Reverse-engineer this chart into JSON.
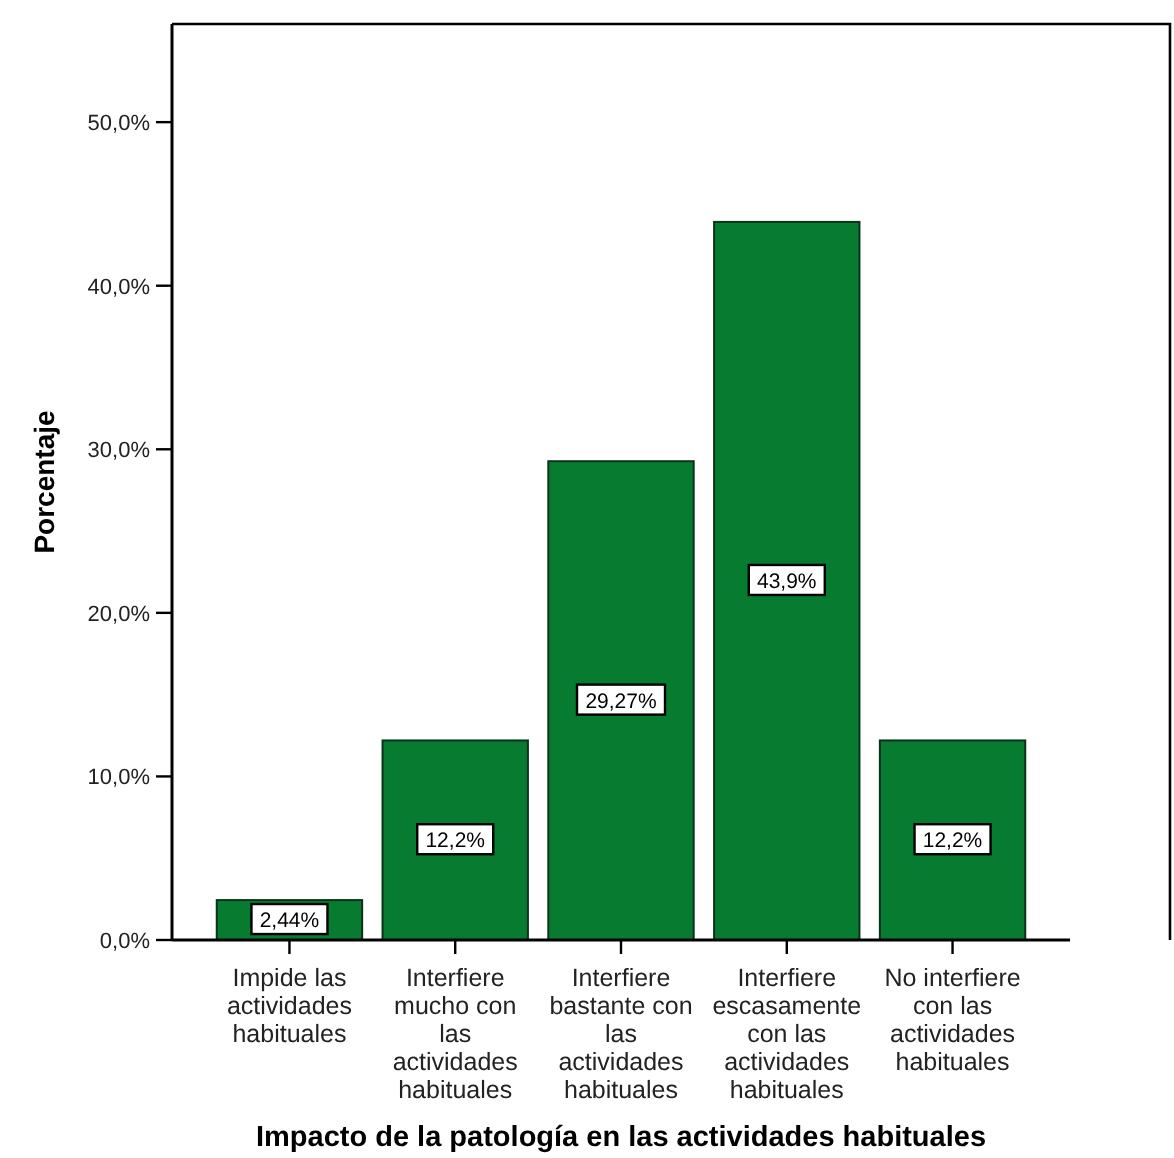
{
  "chart_data": {
    "type": "bar",
    "xlabel": "Impacto de la patología en las actividades habituales",
    "ylabel": "Porcentaje",
    "categories": [
      "Impide las actividades habituales",
      "Interfiere mucho con las actividades habituales",
      "Interfiere bastante con las actividades habituales",
      "Interfiere escasamente con las actividades habituales",
      "No interfiere con las actividades habituales"
    ],
    "values": [
      2.44,
      12.2,
      29.27,
      43.9,
      12.2
    ],
    "color": "#077c31",
    "value_labels": [
      "2,44%",
      "12,2%",
      "29,27%",
      "43,9%",
      "12,2%"
    ],
    "ylim": [
      0,
      56
    ],
    "yticks": [
      {
        "value": 0,
        "label": "0,0%"
      },
      {
        "value": 10,
        "label": "10,0%"
      },
      {
        "value": 20,
        "label": "20,0%"
      },
      {
        "value": 30,
        "label": "30,0%"
      },
      {
        "value": 40,
        "label": "40,0%"
      },
      {
        "value": 50,
        "label": "50,0%"
      }
    ]
  }
}
